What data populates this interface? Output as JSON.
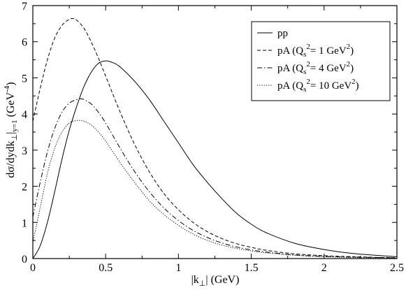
{
  "chart_data": {
    "type": "line",
    "xlabel": "|k⊥| (GeV)",
    "ylabel": "dσ/dydk⊥|y=1 (GeV⁻⁴)",
    "xlim": [
      0,
      2.5
    ],
    "ylim": [
      0,
      7
    ],
    "xticks": [
      0,
      0.5,
      1,
      1.5,
      2,
      2.5
    ],
    "xtick_labels": [
      "0",
      "0.5",
      "1",
      "1.5",
      "2",
      "2.5"
    ],
    "yticks": [
      0,
      1,
      2,
      3,
      4,
      5,
      6,
      7
    ],
    "ytick_labels": [
      "0",
      "1",
      "2",
      "3",
      "4",
      "5",
      "6",
      "7"
    ],
    "grid": false,
    "legend_position": "top-right",
    "series": [
      {
        "name": "pp",
        "style": "solid",
        "x": [
          0,
          0.05,
          0.1,
          0.15,
          0.2,
          0.25,
          0.3,
          0.35,
          0.4,
          0.45,
          0.5,
          0.55,
          0.6,
          0.7,
          0.8,
          0.9,
          1.0,
          1.1,
          1.2,
          1.3,
          1.4,
          1.5,
          1.6,
          1.8,
          2.0,
          2.2,
          2.5
        ],
        "y": [
          0,
          0.35,
          1.0,
          1.85,
          2.75,
          3.55,
          4.2,
          4.75,
          5.15,
          5.4,
          5.47,
          5.42,
          5.3,
          4.9,
          4.4,
          3.8,
          3.2,
          2.6,
          2.1,
          1.65,
          1.25,
          0.95,
          0.72,
          0.42,
          0.25,
          0.14,
          0.05
        ]
      },
      {
        "name": "pA (Qs²= 1 GeV²)",
        "legend": {
          "pre": "pA (Q",
          "sub": "s",
          "sup1": "2",
          "mid": "= 1 GeV",
          "sup2": "2",
          "post": ")"
        },
        "style": "dashed",
        "x": [
          0,
          0.05,
          0.1,
          0.15,
          0.2,
          0.25,
          0.28,
          0.3,
          0.35,
          0.4,
          0.45,
          0.5,
          0.6,
          0.7,
          0.8,
          0.9,
          1.0,
          1.1,
          1.2,
          1.3,
          1.4,
          1.5,
          1.6,
          1.8,
          2.0,
          2.2,
          2.5
        ],
        "y": [
          3.8,
          4.7,
          5.5,
          6.1,
          6.45,
          6.62,
          6.64,
          6.6,
          6.38,
          6.0,
          5.55,
          5.05,
          4.05,
          3.15,
          2.4,
          1.8,
          1.35,
          1.0,
          0.74,
          0.55,
          0.41,
          0.31,
          0.23,
          0.13,
          0.08,
          0.05,
          0.02
        ]
      },
      {
        "name": "pA (Qs²= 4 GeV²)",
        "legend": {
          "pre": "pA (Q",
          "sub": "s",
          "sup1": "2",
          "mid": "= 4 GeV",
          "sup2": "2",
          "post": ")"
        },
        "style": "dashdot",
        "x": [
          0,
          0.05,
          0.1,
          0.15,
          0.2,
          0.25,
          0.3,
          0.33,
          0.35,
          0.4,
          0.45,
          0.5,
          0.6,
          0.7,
          0.8,
          0.9,
          1.0,
          1.1,
          1.2,
          1.3,
          1.4,
          1.5,
          1.6,
          1.8,
          2.0,
          2.2,
          2.5
        ],
        "y": [
          1.15,
          2.1,
          2.95,
          3.6,
          4.05,
          4.3,
          4.4,
          4.42,
          4.4,
          4.28,
          4.05,
          3.75,
          3.05,
          2.4,
          1.85,
          1.4,
          1.05,
          0.78,
          0.58,
          0.43,
          0.32,
          0.24,
          0.18,
          0.1,
          0.06,
          0.04,
          0.02
        ]
      },
      {
        "name": "pA (Qs²= 10 GeV²)",
        "legend": {
          "pre": "pA (Q",
          "sub": "s",
          "sup1": "2",
          "mid": "= 10 GeV",
          "sup2": "2",
          "post": ")"
        },
        "style": "dotted",
        "x": [
          0,
          0.05,
          0.1,
          0.15,
          0.2,
          0.25,
          0.3,
          0.35,
          0.4,
          0.45,
          0.5,
          0.6,
          0.7,
          0.8,
          0.9,
          1.0,
          1.1,
          1.2,
          1.3,
          1.4,
          1.5,
          1.6,
          1.8,
          2.0,
          2.2,
          2.5
        ],
        "y": [
          0.45,
          1.4,
          2.35,
          3.05,
          3.5,
          3.75,
          3.82,
          3.8,
          3.7,
          3.5,
          3.25,
          2.65,
          2.1,
          1.6,
          1.22,
          0.92,
          0.68,
          0.5,
          0.37,
          0.28,
          0.21,
          0.16,
          0.09,
          0.05,
          0.03,
          0.01
        ]
      }
    ]
  }
}
